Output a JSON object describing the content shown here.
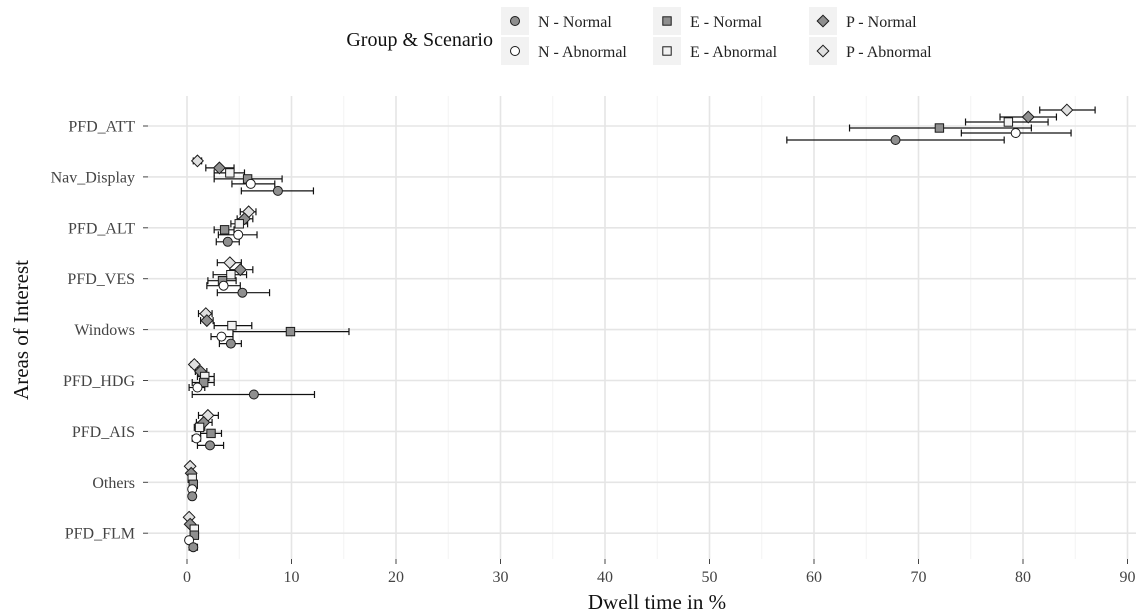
{
  "chart_data": {
    "type": "scatter",
    "orientation": "horizontal",
    "xlabel": "Dwell time in %",
    "ylabel": "Areas of Interest",
    "xlim": [
      0,
      90
    ],
    "xticks": [
      0,
      10,
      20,
      30,
      40,
      50,
      60,
      70,
      80,
      90
    ],
    "grid": true,
    "legend": {
      "title": "Group & Scenario",
      "placement": "top",
      "entries": [
        "N - Normal",
        "N - Abnormal",
        "E - Normal",
        "E - Abnormal",
        "P - Normal",
        "P - Abnormal"
      ]
    },
    "categories": [
      "PFD_ATT",
      "Nav_Display",
      "PFD_ALT",
      "PFD_VES",
      "Windows",
      "PFD_HDG",
      "PFD_AIS",
      "Others",
      "PFD_FLM"
    ],
    "error_bars": true,
    "series": [
      {
        "name": "P - Abnormal",
        "shape": "diamond",
        "fill": "#e0e0e0",
        "points": [
          [
            84.2,
            81.6,
            86.9
          ],
          [
            1.0,
            0.6,
            1.4
          ],
          [
            5.9,
            5.1,
            6.6
          ],
          [
            4.1,
            2.9,
            5.2
          ],
          [
            1.8,
            1.1,
            2.4
          ],
          [
            0.7,
            0.4,
            1.0
          ],
          [
            2.0,
            1.1,
            3.0
          ],
          [
            0.3,
            0.1,
            0.5
          ],
          [
            0.2,
            0.1,
            0.4
          ]
        ]
      },
      {
        "name": "P - Normal",
        "shape": "diamond",
        "fill": "#8f8f8f",
        "points": [
          [
            80.5,
            77.8,
            83.2
          ],
          [
            3.1,
            1.8,
            4.5
          ],
          [
            5.5,
            4.8,
            6.3
          ],
          [
            5.1,
            4.1,
            6.3
          ],
          [
            1.9,
            1.3,
            2.5
          ],
          [
            1.3,
            0.8,
            1.9
          ],
          [
            1.6,
            0.9,
            2.4
          ],
          [
            0.4,
            0.2,
            0.6
          ],
          [
            0.3,
            0.1,
            0.5
          ]
        ]
      },
      {
        "name": "E - Abnormal",
        "shape": "square",
        "fill": "#f2f2f2",
        "points": [
          [
            78.6,
            74.5,
            82.4
          ],
          [
            4.1,
            2.6,
            5.5
          ],
          [
            5.0,
            4.2,
            5.8
          ],
          [
            4.2,
            2.5,
            5.7
          ],
          [
            4.3,
            2.6,
            6.2
          ],
          [
            1.7,
            1.0,
            2.6
          ],
          [
            1.2,
            0.7,
            1.7
          ],
          [
            0.5,
            0.3,
            0.7
          ],
          [
            0.7,
            0.4,
            1.0
          ]
        ]
      },
      {
        "name": "E - Normal",
        "shape": "square",
        "fill": "#8f8f8f",
        "points": [
          [
            72.0,
            63.4,
            80.8
          ],
          [
            5.8,
            2.6,
            9.1
          ],
          [
            3.6,
            2.6,
            4.5
          ],
          [
            3.4,
            2.0,
            4.7
          ],
          [
            9.9,
            4.4,
            15.5
          ],
          [
            1.6,
            0.5,
            2.6
          ],
          [
            2.3,
            1.3,
            3.3
          ],
          [
            0.6,
            0.3,
            0.8
          ],
          [
            0.7,
            0.3,
            1.1
          ]
        ]
      },
      {
        "name": "N - Abnormal",
        "shape": "circle",
        "fill": "#ffffff",
        "points": [
          [
            79.3,
            74.1,
            84.6
          ],
          [
            6.1,
            4.3,
            8.4
          ],
          [
            4.9,
            3.0,
            6.7
          ],
          [
            3.5,
            1.9,
            5.1
          ],
          [
            3.3,
            2.3,
            4.4
          ],
          [
            1.0,
            0.2,
            1.7
          ],
          [
            0.9,
            0.5,
            1.3
          ],
          [
            0.5,
            0.2,
            0.7
          ],
          [
            0.2,
            0.05,
            0.4
          ]
        ]
      },
      {
        "name": "N - Normal",
        "shape": "circle",
        "fill": "#8f8f8f",
        "points": [
          [
            67.8,
            57.4,
            78.2
          ],
          [
            8.7,
            5.2,
            12.1
          ],
          [
            3.9,
            2.8,
            5.0
          ],
          [
            5.3,
            2.9,
            7.9
          ],
          [
            4.2,
            3.1,
            5.2
          ],
          [
            6.4,
            0.5,
            12.2
          ],
          [
            2.2,
            1.0,
            3.5
          ],
          [
            0.5,
            0.3,
            0.7
          ],
          [
            0.6,
            0.2,
            1.0
          ]
        ]
      }
    ]
  }
}
